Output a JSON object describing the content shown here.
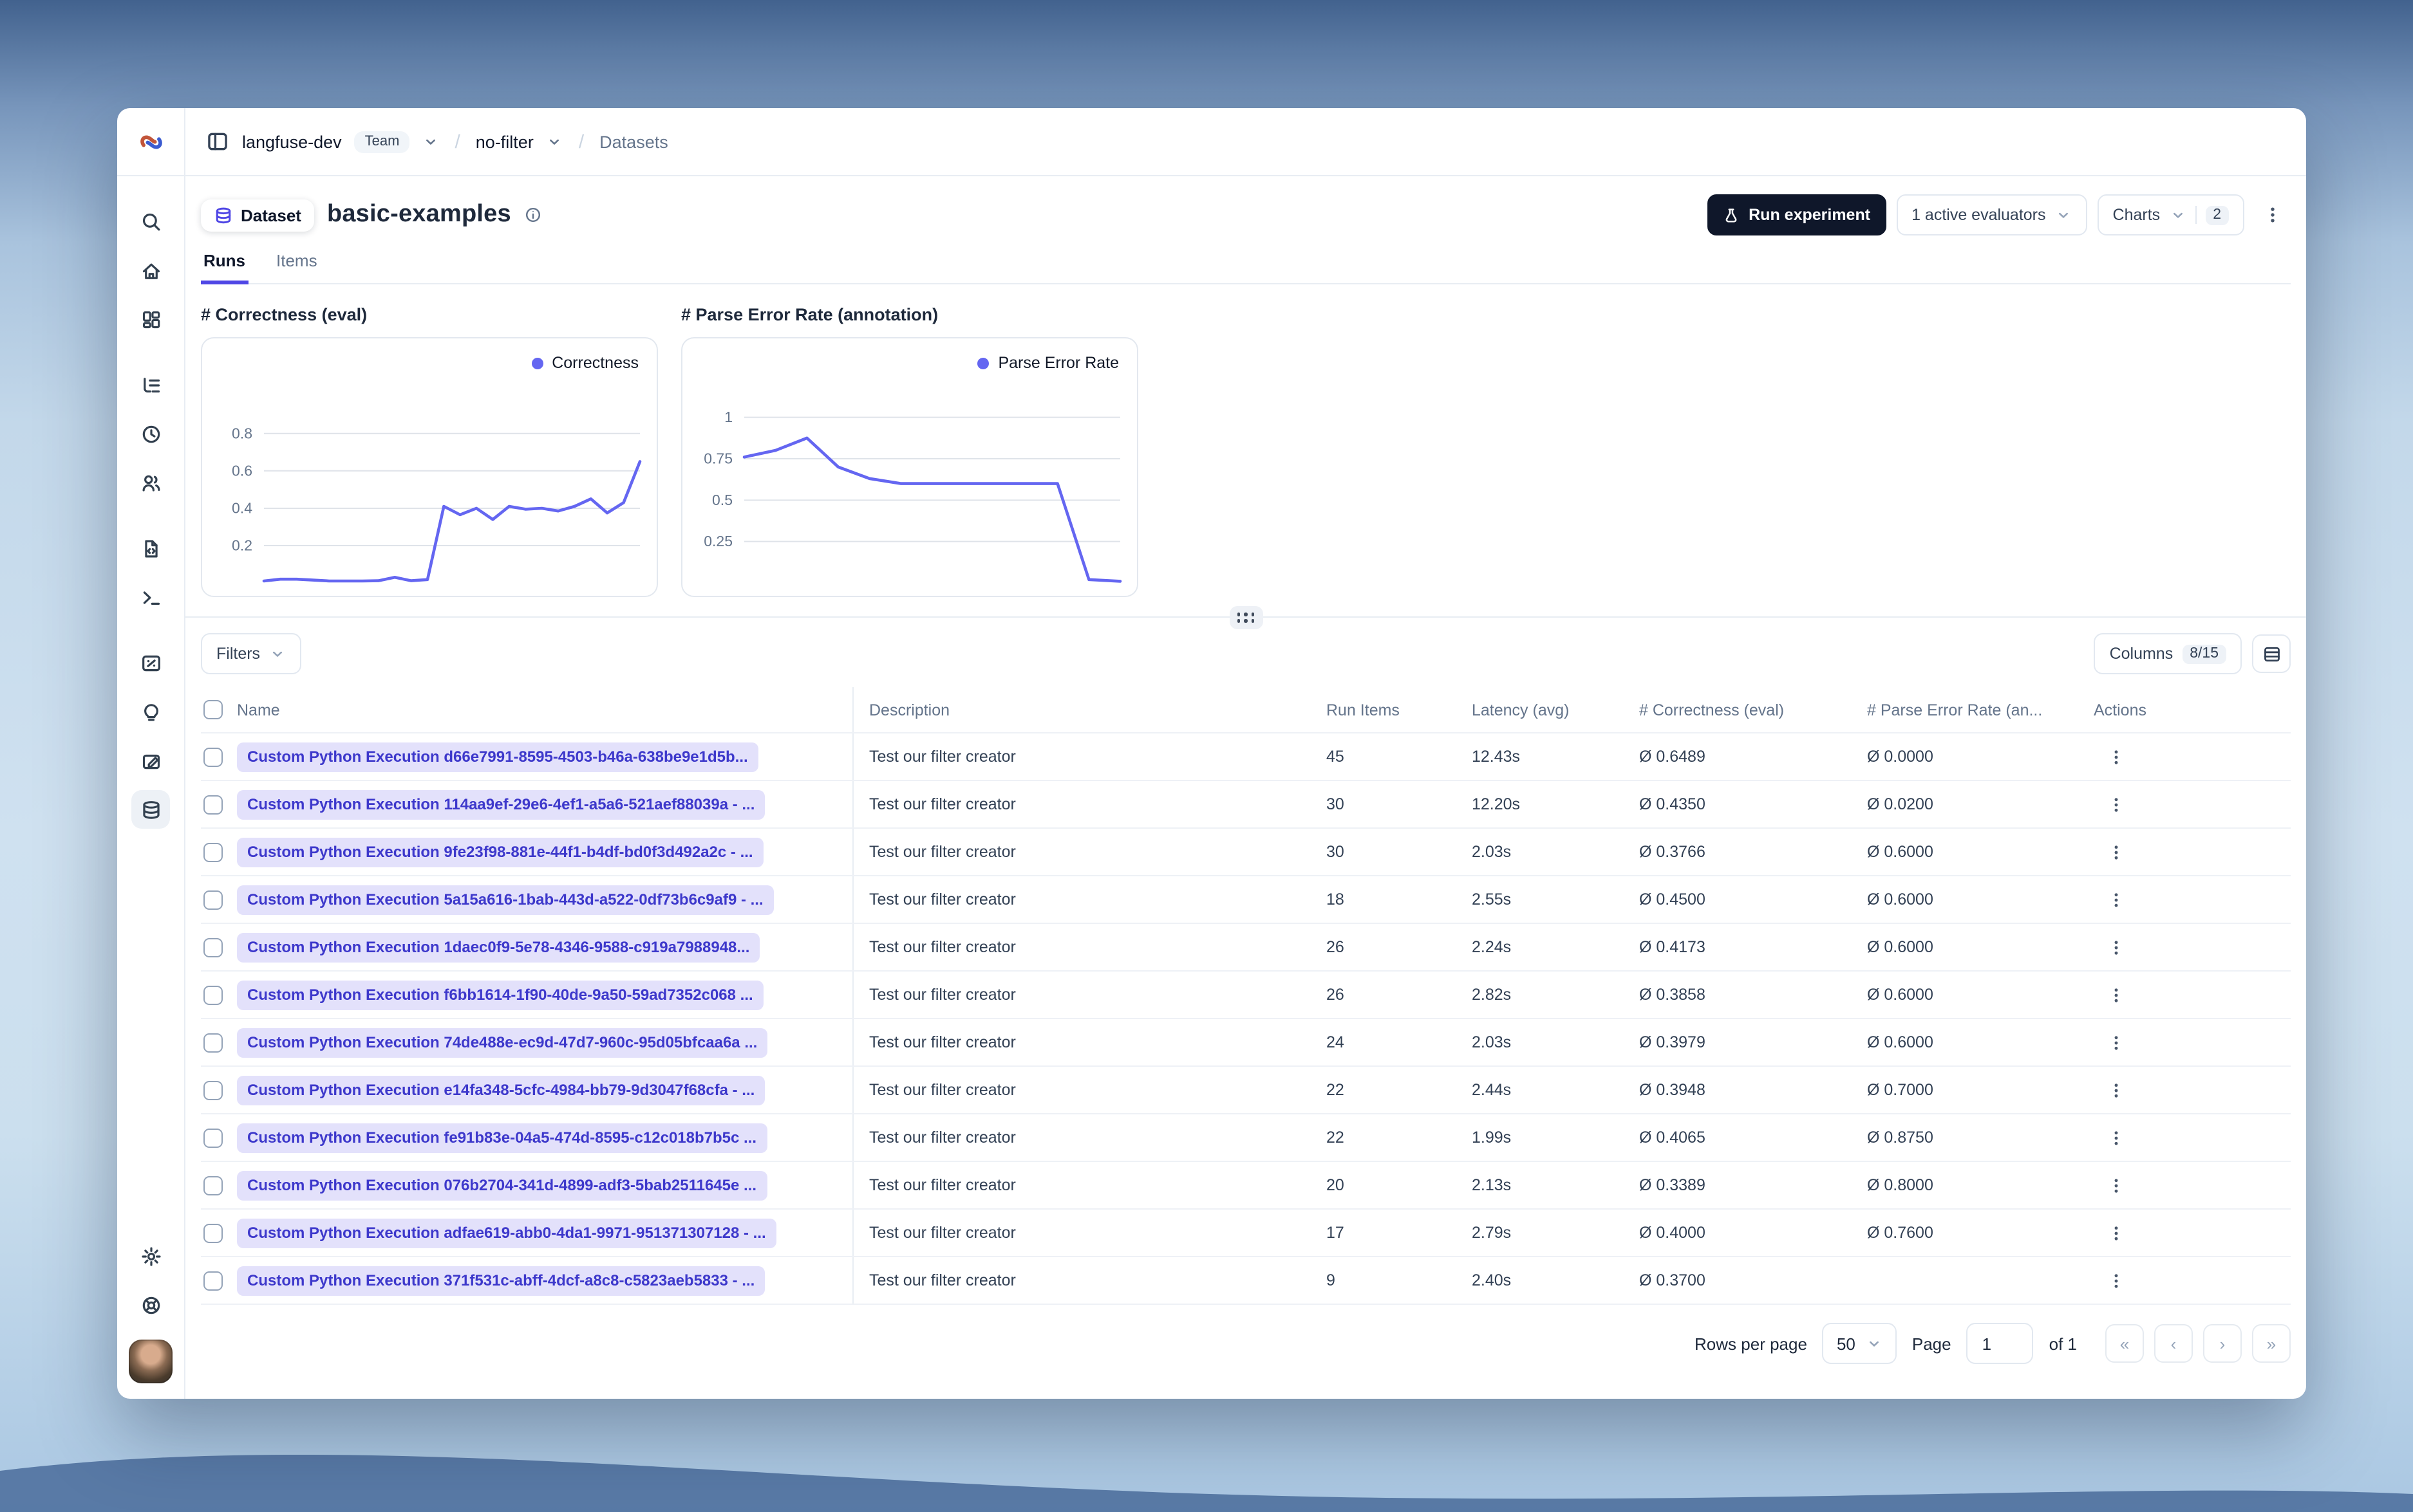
{
  "colors": {
    "accent": "#4f46e5",
    "chart_line": "#6466f1",
    "badge_bg": "#e3e1fb",
    "badge_text": "#3d38cb",
    "dark_button_bg": "#0f172a"
  },
  "breadcrumb": {
    "project": "langfuse-dev",
    "project_badge": "Team",
    "environment": "no-filter",
    "section": "Datasets",
    "separator": "/"
  },
  "sidebar": {
    "items": [
      {
        "icon": "search-icon",
        "name": "search"
      },
      {
        "icon": "home-icon",
        "name": "home"
      },
      {
        "icon": "dashboard-icon",
        "name": "dashboards"
      },
      {
        "icon": "tracing-icon",
        "name": "tracing",
        "gap": true
      },
      {
        "icon": "clock-icon",
        "name": "sessions"
      },
      {
        "icon": "users-icon",
        "name": "users"
      },
      {
        "icon": "file-code-icon",
        "name": "prompts",
        "gap": true
      },
      {
        "icon": "terminal-icon",
        "name": "playground"
      },
      {
        "icon": "score-card-icon",
        "name": "scores",
        "gap": true
      },
      {
        "icon": "lightbulb-icon",
        "name": "evaluators"
      },
      {
        "icon": "annotation-icon",
        "name": "annotation"
      },
      {
        "icon": "database-icon",
        "name": "datasets",
        "active": true
      }
    ],
    "bottom_items": [
      {
        "icon": "gear-icon",
        "name": "settings"
      },
      {
        "icon": "lifebuoy-icon",
        "name": "support"
      }
    ]
  },
  "header": {
    "entity_label": "Dataset",
    "title": "basic-examples"
  },
  "toolbar": {
    "run_experiment": "Run experiment",
    "evaluators": "1 active evaluators",
    "charts": "Charts",
    "charts_count": "2"
  },
  "tabs": [
    {
      "label": "Runs",
      "active": true
    },
    {
      "label": "Items",
      "active": false
    }
  ],
  "chart_data": [
    {
      "type": "line",
      "title": "# Correctness (eval)",
      "series": [
        {
          "name": "Correctness",
          "values": [
            0.01,
            0.02,
            0.02,
            0.015,
            0.01,
            0.01,
            0.01,
            0.012,
            0.03,
            0.012,
            0.018,
            0.41,
            0.365,
            0.4,
            0.34,
            0.41,
            0.395,
            0.4,
            0.385,
            0.41,
            0.45,
            0.375,
            0.43,
            0.65
          ]
        }
      ],
      "yticks": [
        0.2,
        0.4,
        0.6,
        0.8
      ],
      "ylim": [
        0,
        1.02
      ],
      "legend_position": "top-right",
      "grid": true
    },
    {
      "type": "line",
      "title": "# Parse Error Rate (annotation)",
      "series": [
        {
          "name": "Parse Error Rate",
          "values": [
            0.76,
            0.8,
            0.875,
            0.7,
            0.63,
            0.6,
            0.6,
            0.6,
            0.6,
            0.6,
            0.6,
            0.02,
            0.01
          ]
        }
      ],
      "yticks": [
        0.25,
        0.5,
        0.75,
        1
      ],
      "ylim": [
        0,
        1.15
      ],
      "legend_position": "top-right",
      "grid": true
    }
  ],
  "filters": {
    "label": "Filters"
  },
  "columns_button": {
    "label": "Columns",
    "badge": "8/15"
  },
  "table": {
    "columns": [
      "Name",
      "Description",
      "Run Items",
      "Latency (avg)",
      "# Correctness (eval)",
      "# Parse Error Rate (an...",
      "Actions"
    ],
    "rows": [
      {
        "name": "Custom Python Execution d66e7991-8595-4503-b46a-638be9e1d5b...",
        "description": "Test our filter creator",
        "run_items": "45",
        "latency": "12.43s",
        "correctness": "Ø 0.6489",
        "parse_error": "Ø 0.0000"
      },
      {
        "name": "Custom Python Execution 114aa9ef-29e6-4ef1-a5a6-521aef88039a - ...",
        "description": "Test our filter creator",
        "run_items": "30",
        "latency": "12.20s",
        "correctness": "Ø 0.4350",
        "parse_error": "Ø 0.0200"
      },
      {
        "name": "Custom Python Execution 9fe23f98-881e-44f1-b4df-bd0f3d492a2c - ...",
        "description": "Test our filter creator",
        "run_items": "30",
        "latency": "2.03s",
        "correctness": "Ø 0.3766",
        "parse_error": "Ø 0.6000"
      },
      {
        "name": "Custom Python Execution 5a15a616-1bab-443d-a522-0df73b6c9af9 - ...",
        "description": "Test our filter creator",
        "run_items": "18",
        "latency": "2.55s",
        "correctness": "Ø 0.4500",
        "parse_error": "Ø 0.6000"
      },
      {
        "name": "Custom Python Execution 1daec0f9-5e78-4346-9588-c919a7988948...",
        "description": "Test our filter creator",
        "run_items": "26",
        "latency": "2.24s",
        "correctness": "Ø 0.4173",
        "parse_error": "Ø 0.6000"
      },
      {
        "name": "Custom Python Execution f6bb1614-1f90-40de-9a50-59ad7352c068 ...",
        "description": "Test our filter creator",
        "run_items": "26",
        "latency": "2.82s",
        "correctness": "Ø 0.3858",
        "parse_error": "Ø 0.6000"
      },
      {
        "name": "Custom Python Execution 74de488e-ec9d-47d7-960c-95d05bfcaa6a ...",
        "description": "Test our filter creator",
        "run_items": "24",
        "latency": "2.03s",
        "correctness": "Ø 0.3979",
        "parse_error": "Ø 0.6000"
      },
      {
        "name": "Custom Python Execution e14fa348-5cfc-4984-bb79-9d3047f68cfa - ...",
        "description": "Test our filter creator",
        "run_items": "22",
        "latency": "2.44s",
        "correctness": "Ø 0.3948",
        "parse_error": "Ø 0.7000"
      },
      {
        "name": "Custom Python Execution fe91b83e-04a5-474d-8595-c12c018b7b5c ...",
        "description": "Test our filter creator",
        "run_items": "22",
        "latency": "1.99s",
        "correctness": "Ø 0.4065",
        "parse_error": "Ø 0.8750"
      },
      {
        "name": "Custom Python Execution 076b2704-341d-4899-adf3-5bab2511645e ...",
        "description": "Test our filter creator",
        "run_items": "20",
        "latency": "2.13s",
        "correctness": "Ø 0.3389",
        "parse_error": "Ø 0.8000"
      },
      {
        "name": "Custom Python Execution adfae619-abb0-4da1-9971-951371307128 - ...",
        "description": "Test our filter creator",
        "run_items": "17",
        "latency": "2.79s",
        "correctness": "Ø 0.4000",
        "parse_error": "Ø 0.7600"
      },
      {
        "name": "Custom Python Execution 371f531c-abff-4dcf-a8c8-c5823aeb5833 - ...",
        "description": "Test our filter creator",
        "run_items": "9",
        "latency": "2.40s",
        "correctness": "Ø 0.3700",
        "parse_error": ""
      }
    ]
  },
  "footer": {
    "rows_per_page_label": "Rows per page",
    "rows_per_page_value": "50",
    "page_label": "Page",
    "page_value": "1",
    "of_label": "of 1",
    "pager": [
      "«",
      "‹",
      "›",
      "»"
    ]
  }
}
